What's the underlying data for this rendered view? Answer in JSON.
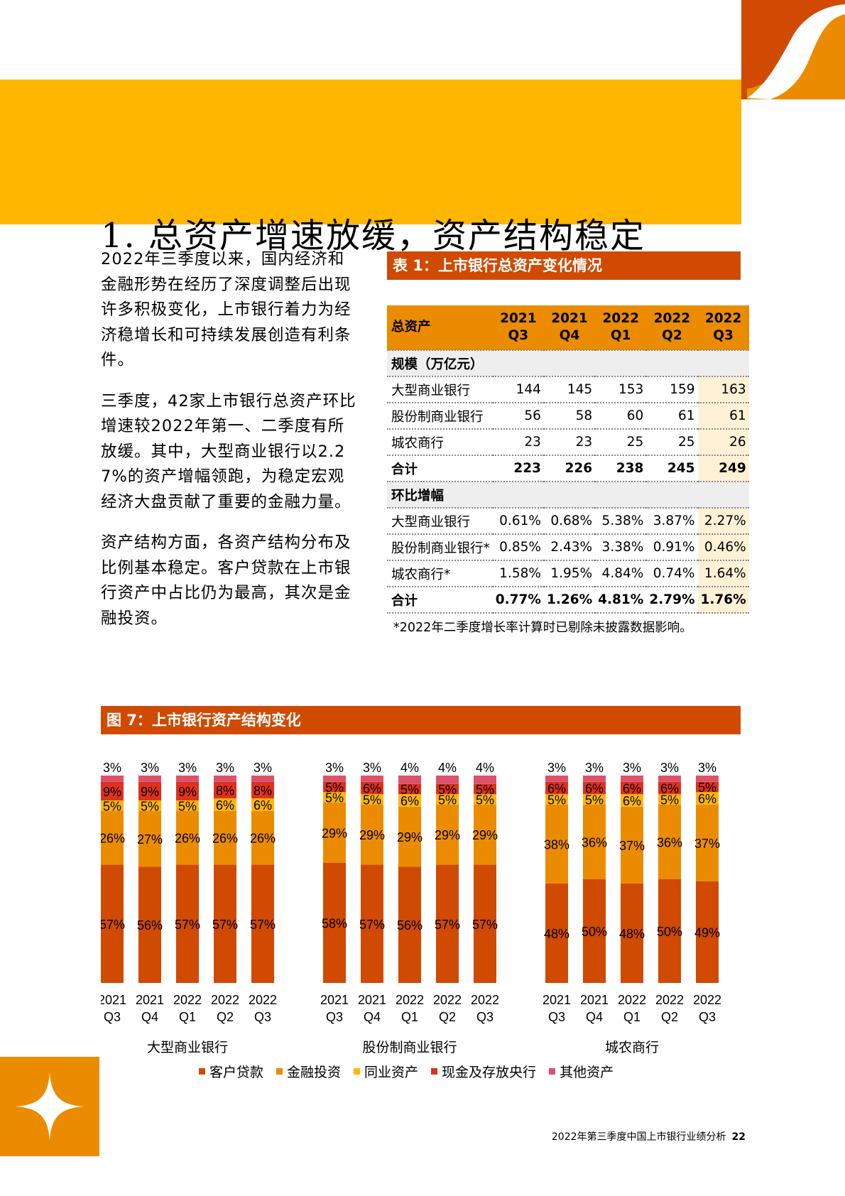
{
  "colors": {
    "orange_dark": "#D04A02",
    "orange": "#EB8C00",
    "yellow": "#FFB600",
    "red": "#E0301E",
    "pink": "#DB536A",
    "highlight": "#FFF1D6"
  },
  "page": {
    "title": "1. 总资产增速放缓，资产结构稳定"
  },
  "paragraphs": [
    "2022年三季度以来，国内经济和金融形势在经历了深度调整后出现许多积极变化，上市银行着力为经济稳增长和可持续发展创造有利条件。",
    "三季度，42家上市银行总资产环比增速较2022年第一、二季度有所放缓。其中，大型商业银行以2.27%的资产增幅领跑，为稳定宏观经济大盘贡献了重要的金融力量。",
    "资产结构方面，各资产结构分布及比例基本稳定。客户贷款在上市银行资产中占比仍为最高，其次是金融投资。"
  ],
  "table": {
    "caption": "表 1：上市银行总资产变化情况",
    "corner_header": "总资产",
    "columns": [
      {
        "year": "2021",
        "quarter": "Q3"
      },
      {
        "year": "2021",
        "quarter": "Q4"
      },
      {
        "year": "2022",
        "quarter": "Q1"
      },
      {
        "year": "2022",
        "quarter": "Q2"
      },
      {
        "year": "2022",
        "quarter": "Q3"
      }
    ],
    "sections": [
      {
        "title": "规模（万亿元）",
        "rows": [
          {
            "label": "大型商业银行",
            "values": [
              "144",
              "145",
              "153",
              "159",
              "163"
            ],
            "total": false
          },
          {
            "label": "股份制商业银行",
            "values": [
              "56",
              "58",
              "60",
              "61",
              "61"
            ],
            "total": false
          },
          {
            "label": "城农商行",
            "values": [
              "23",
              "23",
              "25",
              "25",
              "26"
            ],
            "total": false
          },
          {
            "label": "合计",
            "values": [
              "223",
              "226",
              "238",
              "245",
              "249"
            ],
            "total": true
          }
        ]
      },
      {
        "title": "环比增幅",
        "rows": [
          {
            "label": "大型商业银行",
            "values": [
              "0.61%",
              "0.68%",
              "5.38%",
              "3.87%",
              "2.27%"
            ],
            "total": false
          },
          {
            "label": "股份制商业银行*",
            "values": [
              "0.85%",
              "2.43%",
              "3.38%",
              "0.91%",
              "0.46%"
            ],
            "total": false
          },
          {
            "label": "城农商行*",
            "values": [
              "1.58%",
              "1.95%",
              "4.84%",
              "0.74%",
              "1.64%"
            ],
            "total": false
          },
          {
            "label": "合计",
            "values": [
              "0.77%",
              "1.26%",
              "4.81%",
              "2.79%",
              "1.76%"
            ],
            "total": true
          }
        ]
      }
    ],
    "note": "*2022年二季度增长率计算时已剔除未披露数据影响。"
  },
  "figure": {
    "caption": "图 7：上市银行资产结构变化"
  },
  "chart_data": {
    "type": "bar",
    "stacked": true,
    "categories": [
      [
        "2021",
        "Q3"
      ],
      [
        "2021",
        "Q4"
      ],
      [
        "2022",
        "Q1"
      ],
      [
        "2022",
        "Q2"
      ],
      [
        "2022",
        "Q3"
      ]
    ],
    "series_names": [
      "客户贷款",
      "金融投资",
      "同业资产",
      "现金及存放央行",
      "其他资产"
    ],
    "series_colors": [
      "#D04A02",
      "#EB8C00",
      "#FFB600",
      "#E0301E",
      "#DB536A"
    ],
    "groups": [
      {
        "name": "大型商业银行",
        "values": [
          [
            57,
            26,
            5,
            9,
            3
          ],
          [
            56,
            27,
            5,
            9,
            3
          ],
          [
            57,
            26,
            5,
            9,
            3
          ],
          [
            57,
            26,
            6,
            8,
            3
          ],
          [
            57,
            26,
            6,
            8,
            3
          ]
        ]
      },
      {
        "name": "股份制商业银行",
        "values": [
          [
            58,
            29,
            5,
            5,
            3
          ],
          [
            57,
            29,
            5,
            6,
            3
          ],
          [
            56,
            29,
            6,
            5,
            4
          ],
          [
            57,
            29,
            5,
            5,
            4
          ],
          [
            57,
            29,
            5,
            5,
            4
          ]
        ]
      },
      {
        "name": "城农商行",
        "values": [
          [
            48,
            38,
            5,
            6,
            3
          ],
          [
            50,
            36,
            5,
            6,
            3
          ],
          [
            48,
            37,
            6,
            6,
            3
          ],
          [
            50,
            36,
            5,
            6,
            3
          ],
          [
            49,
            37,
            6,
            5,
            3
          ]
        ]
      }
    ],
    "value_suffix": "%",
    "legend_position": "bottom"
  },
  "footer": {
    "text": "2022年第三季度中国上市银行业绩分析",
    "page_number": "22"
  }
}
